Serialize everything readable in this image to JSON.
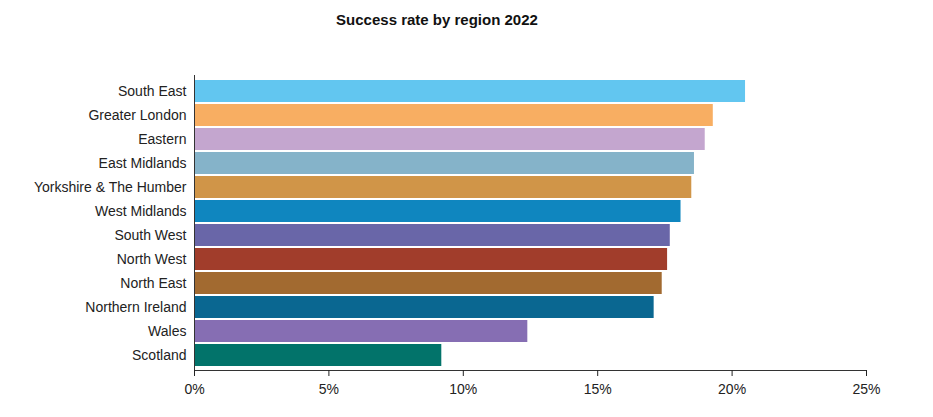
{
  "chart_data": {
    "type": "bar",
    "title": "Success rate by region 2022",
    "orientation": "horizontal",
    "categories": [
      "South East",
      "Greater London",
      "Eastern",
      "East Midlands",
      "Yorkshire & The Humber",
      "West Midlands",
      "South West",
      "North West",
      "North East",
      "Northern Ireland",
      "Wales",
      "Scotland"
    ],
    "values": [
      20.5,
      19.3,
      19.0,
      18.6,
      18.5,
      18.1,
      17.7,
      17.6,
      17.4,
      17.1,
      12.4,
      9.2
    ],
    "colors": [
      "#62c6f0",
      "#f8ae62",
      "#c4a6cf",
      "#85b3c9",
      "#d09548",
      "#0f86bf",
      "#6966a8",
      "#a13d2b",
      "#a26a30",
      "#0a6791",
      "#866eb3",
      "#02736a"
    ],
    "xlim": [
      0,
      25
    ],
    "xticks": [
      {
        "value": 0,
        "label": "0%"
      },
      {
        "value": 5,
        "label": "5%"
      },
      {
        "value": 10,
        "label": "10%"
      },
      {
        "value": 15,
        "label": "15%"
      },
      {
        "value": 20,
        "label": "20%"
      },
      {
        "value": 25,
        "label": "25%"
      }
    ],
    "grid": false
  }
}
